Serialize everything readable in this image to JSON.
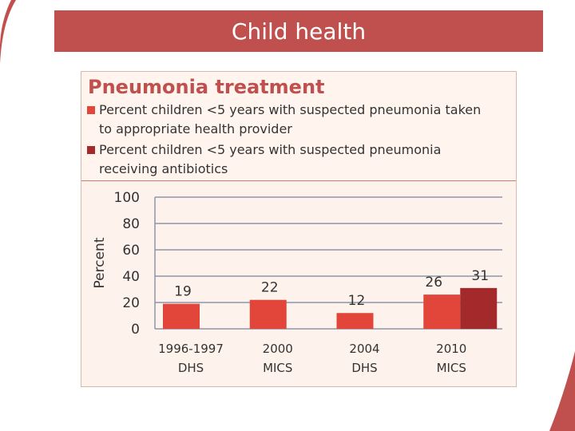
{
  "slide": {
    "title": "Child health"
  },
  "chart_data": {
    "type": "bar",
    "title": "Pneumonia treatment",
    "ylabel": "Percent",
    "xlabel": "",
    "ylim": [
      0,
      100
    ],
    "yticks": [
      0,
      20,
      40,
      60,
      80,
      100
    ],
    "grid": true,
    "legend_placement": "top-left",
    "categories": [
      {
        "line1": "1996-1997",
        "line2": "DHS"
      },
      {
        "line1": "2000",
        "line2": "MICS"
      },
      {
        "line1": "2004",
        "line2": "DHS"
      },
      {
        "line1": "2010",
        "line2": "MICS"
      }
    ],
    "series": [
      {
        "legend_line1": "Percent children <5 years with suspected pneumonia taken",
        "legend_line2": "to appropriate health provider",
        "color": "#e2463a",
        "values": [
          19,
          22,
          12,
          26
        ]
      },
      {
        "legend_line1": "Percent children <5 years with suspected pneumonia",
        "legend_line2": "receiving antibiotics",
        "color": "#a3292b",
        "values": [
          null,
          null,
          null,
          31
        ]
      }
    ]
  },
  "colors": {
    "title_bar": "#c0504d",
    "grid": "#8c96a8",
    "axis_text": "#333333"
  }
}
